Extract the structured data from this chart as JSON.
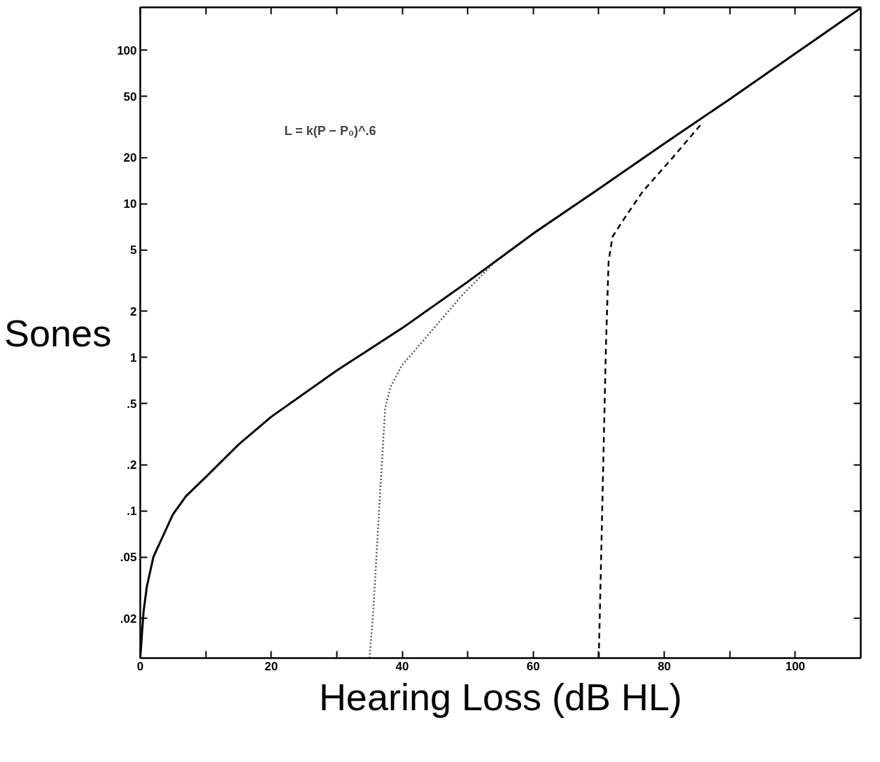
{
  "chart_data": {
    "type": "line",
    "xlabel": "Hearing Loss (dB HL)",
    "ylabel": "Sones",
    "log": "y",
    "grid": false,
    "marker": "none",
    "xlim": [
      0,
      110
    ],
    "ylim": [
      0.011,
      190
    ],
    "xticks": [
      0,
      {
        "value": 10,
        "label": null
      },
      20,
      {
        "value": 30,
        "label": null
      },
      40,
      {
        "value": 50,
        "label": null
      },
      60,
      {
        "value": 70,
        "label": null
      },
      80,
      {
        "value": 90,
        "label": null
      },
      100
    ],
    "yticks": [
      {
        "value": 0.02,
        "label": ".02"
      },
      {
        "value": 0.05,
        "label": ".05"
      },
      {
        "value": 0.1,
        "label": ".1"
      },
      {
        "value": 0.2,
        "label": ".2"
      },
      {
        "value": 0.5,
        "label": ".5"
      },
      1,
      2,
      5,
      10,
      20,
      50,
      100
    ],
    "annotations": [
      "L = k(P − P₀)^.6"
    ],
    "series": [
      {
        "color": "#000000",
        "line_style": "solid",
        "x": [
          0,
          0.5,
          1,
          2,
          3,
          5,
          7,
          10,
          15,
          20,
          30,
          40,
          50,
          60,
          70,
          80,
          90,
          100,
          110
        ],
        "values": [
          0.011,
          0.022,
          0.032,
          0.05,
          0.062,
          0.095,
          0.125,
          0.166,
          0.27,
          0.41,
          0.82,
          1.55,
          3.1,
          6.4,
          12.5,
          24.6,
          48,
          95,
          188
        ]
      },
      {
        "color": "#555555",
        "line_style": "dotted",
        "x": [
          35,
          35.6,
          36.7,
          37.4,
          38.2,
          39.9,
          44.5,
          49,
          53.7
        ],
        "values": [
          0.011,
          0.023,
          0.15,
          0.47,
          0.64,
          0.88,
          1.49,
          2.5,
          4.0
        ]
      },
      {
        "color": "#000000",
        "line_style": "dashed",
        "x": [
          70,
          70.3,
          71.1,
          71.5,
          72.1,
          73.8,
          76.7,
          81.3,
          85.9
        ],
        "values": [
          0.011,
          0.038,
          1.2,
          4.2,
          6.1,
          7.9,
          12,
          20,
          34
        ]
      }
    ]
  }
}
